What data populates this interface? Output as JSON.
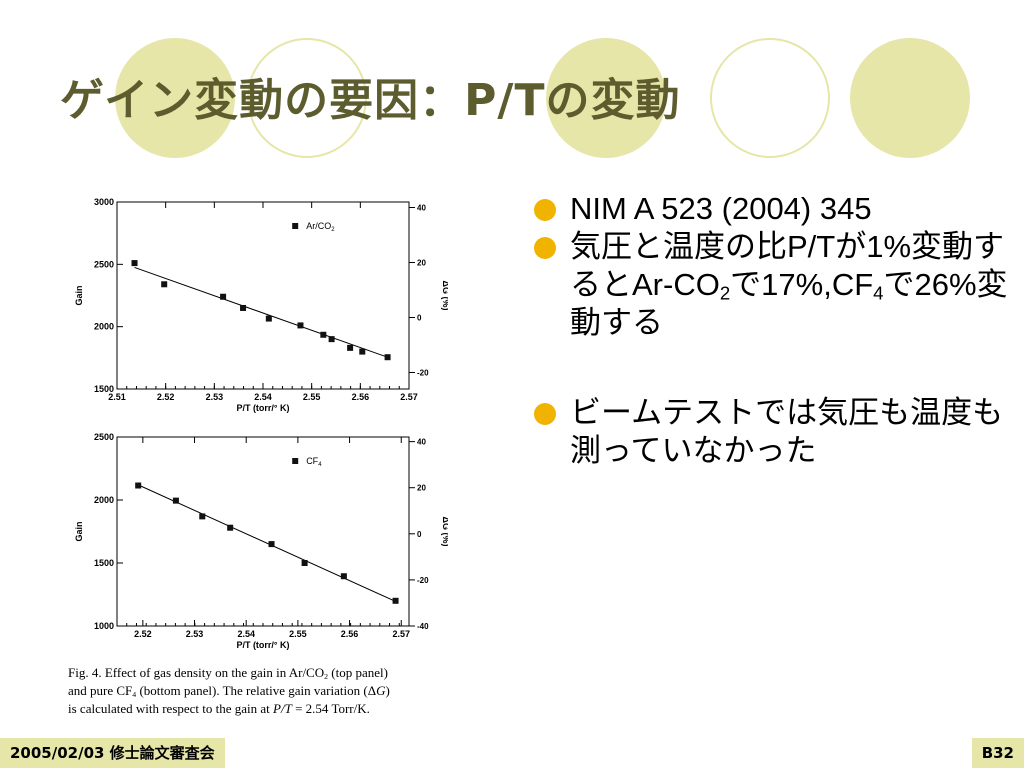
{
  "slide": {
    "title": "ゲイン変動の要因：P/Tの変動",
    "footer_left": "2005/02/03 修士論文審査会",
    "footer_right": "B32",
    "accent_color": "#e6e6a8",
    "bullet_color": "#f0b400",
    "title_color": "#5c5c2e"
  },
  "bullets": [
    {
      "text": "NIM A 523 (2004) 345"
    },
    {
      "pre": "気圧と温度の比P/Tが1%変動するとAr-CO",
      "sub1": "2",
      "mid": "で17%,CF",
      "sub2": "4",
      "post": "で26%変動する"
    },
    {
      "text": "ビームテストでは気圧も温度も測っていなかった"
    }
  ],
  "caption": {
    "line1a": "Fig. 4.  Effect of gas density on the gain in Ar/CO",
    "line1sub": "2",
    "line1b": " (top panel)",
    "line2a": "and pure CF",
    "line2sub": "4",
    "line2b": " (bottom panel). The relative gain variation (Δ",
    "line2i": "G",
    "line2c": ")",
    "line3a": "is calculated with respect to the gain at ",
    "line3i": "P/T",
    "line3b": " = 2.54 Torr/K."
  },
  "chart_data": [
    {
      "type": "scatter",
      "legend": "Ar/CO2",
      "legend_base": "Ar/CO",
      "legend_sub": "2",
      "xlabel": "P/T (torr/° K)",
      "ylabel": "Gain",
      "y2label": "ΔG (%)",
      "xlim": [
        2.51,
        2.57
      ],
      "ylim": [
        1500,
        3000
      ],
      "y2lim": [
        -26,
        42
      ],
      "xticks": [
        "2.51",
        "2.52",
        "2.53",
        "2.54",
        "2.55",
        "2.56",
        "2.57"
      ],
      "yticks": [
        "1500",
        "2000",
        "2500",
        "3000"
      ],
      "y2ticks": [
        "-20",
        "0",
        "20",
        "40"
      ],
      "x": [
        2.5136,
        2.5197,
        2.5318,
        2.5359,
        2.5412,
        2.5477,
        2.5524,
        2.5541,
        2.5579,
        2.5604,
        2.5656
      ],
      "y": [
        2510,
        2340,
        2240,
        2150,
        2065,
        2010,
        1935,
        1900,
        1830,
        1800,
        1755
      ],
      "fit_line": {
        "x": [
          2.5136,
          2.5656
        ],
        "y": [
          2475,
          1755
        ]
      }
    },
    {
      "type": "scatter",
      "legend": "CF4",
      "legend_base": "CF",
      "legend_sub": "4",
      "xlabel": "P/T (torr/° K)",
      "ylabel": "Gain",
      "y2label": "ΔG (%)",
      "xlim": [
        2.515,
        2.5715
      ],
      "ylim": [
        1000,
        2500
      ],
      "y2lim": [
        -40,
        42
      ],
      "xticks": [
        "2.52",
        "2.53",
        "2.54",
        "2.55",
        "2.56",
        "2.57"
      ],
      "yticks": [
        "1000",
        "1500",
        "2000",
        "2500"
      ],
      "y2ticks": [
        "-40",
        "-20",
        "0",
        "20",
        "40"
      ],
      "x": [
        2.5191,
        2.5264,
        2.5315,
        2.5369,
        2.5449,
        2.5513,
        2.5589,
        2.5689
      ],
      "y": [
        2115,
        1995,
        1870,
        1780,
        1650,
        1500,
        1395,
        1200
      ],
      "fit_line": {
        "x": [
          2.5191,
          2.5689
        ],
        "y": [
          2120,
          1195
        ]
      }
    }
  ]
}
